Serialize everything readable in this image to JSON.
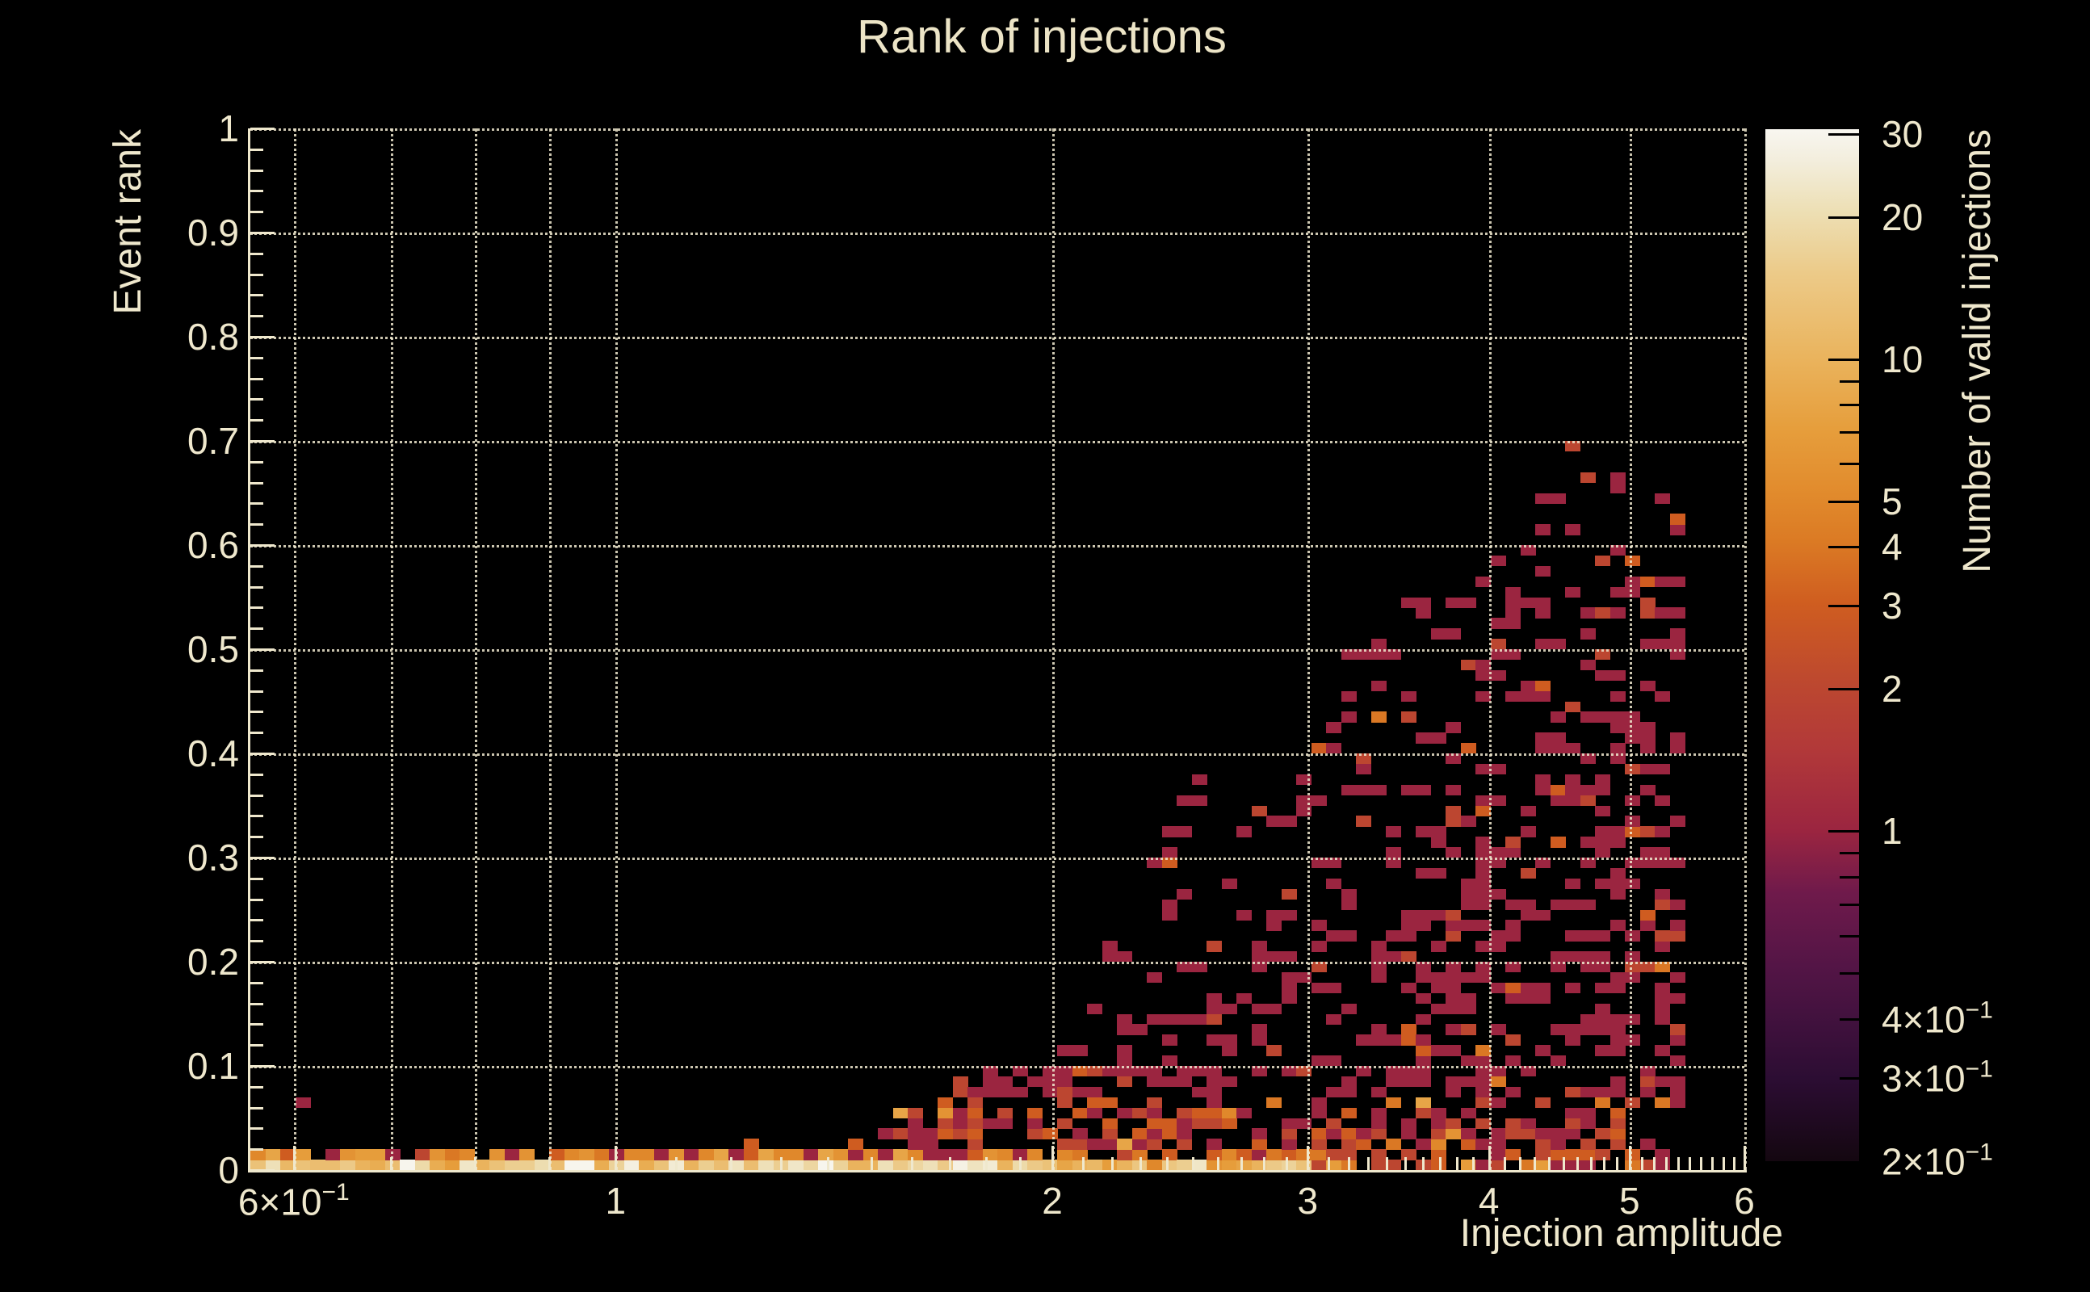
{
  "chart_data": {
    "type": "heatmap",
    "title": "Rank of injections",
    "xlabel": "Injection amplitude",
    "ylabel": "Event rank",
    "zlabel": "Number of valid injections",
    "x_scale": "log",
    "x_range": [
      0.56,
      6.0
    ],
    "y_scale": "linear",
    "y_range": [
      0.0,
      1.0
    ],
    "z_scale": "log",
    "z_range": [
      0.2,
      30.7
    ],
    "nx": 100,
    "ny": 100,
    "grid": true,
    "x_major_ticks": [
      {
        "v": 0.6,
        "m": "6×10",
        "s": "−1"
      },
      {
        "v": 1,
        "m": "1",
        "s": ""
      },
      {
        "v": 2,
        "m": "2",
        "s": ""
      },
      {
        "v": 3,
        "m": "3",
        "s": ""
      },
      {
        "v": 4,
        "m": "4",
        "s": ""
      },
      {
        "v": 5,
        "m": "5",
        "s": ""
      },
      {
        "v": 6,
        "m": "6",
        "s": ""
      }
    ],
    "x_gridlines": [
      0.6,
      0.7,
      0.8,
      0.9,
      1,
      2,
      3,
      4,
      5,
      6
    ],
    "y_major_ticks": [
      {
        "v": 0.0,
        "label": "0"
      },
      {
        "v": 0.1,
        "label": "0.1"
      },
      {
        "v": 0.2,
        "label": "0.2"
      },
      {
        "v": 0.3,
        "label": "0.3"
      },
      {
        "v": 0.4,
        "label": "0.4"
      },
      {
        "v": 0.5,
        "label": "0.5"
      },
      {
        "v": 0.6,
        "label": "0.6"
      },
      {
        "v": 0.7,
        "label": "0.7"
      },
      {
        "v": 0.8,
        "label": "0.8"
      },
      {
        "v": 0.9,
        "label": "0.9"
      },
      {
        "v": 1.0,
        "label": "1"
      }
    ],
    "y_minor_step": 0.02,
    "colorbar": {
      "major_ticks": [
        30,
        20,
        10,
        5,
        4,
        3,
        2,
        1
      ],
      "minor_ticks": [
        9,
        8,
        7,
        6,
        0.9,
        0.8,
        0.7,
        0.6,
        0.5,
        0.4,
        0.3
      ],
      "labels": [
        {
          "v": 30,
          "m": "30",
          "s": ""
        },
        {
          "v": 20,
          "m": "20",
          "s": ""
        },
        {
          "v": 10,
          "m": "10",
          "s": ""
        },
        {
          "v": 5,
          "m": "5",
          "s": ""
        },
        {
          "v": 4,
          "m": "4",
          "s": ""
        },
        {
          "v": 3,
          "m": "3",
          "s": ""
        },
        {
          "v": 2,
          "m": "2",
          "s": ""
        },
        {
          "v": 1,
          "m": "1",
          "s": ""
        },
        {
          "v": 0.4,
          "m": "4×10",
          "s": "−1"
        },
        {
          "v": 0.3,
          "m": "3×10",
          "s": "−1"
        },
        {
          "v": 0.2,
          "m": "2×10",
          "s": "−1"
        }
      ]
    },
    "palette": [
      [
        0.0,
        "#140710"
      ],
      [
        0.08,
        "#2c0d33"
      ],
      [
        0.145,
        "#44123f"
      ],
      [
        0.19,
        "#541546"
      ],
      [
        0.26,
        "#6f1a4b"
      ],
      [
        0.32,
        "#9b2540"
      ],
      [
        0.4,
        "#b23939"
      ],
      [
        0.46,
        "#bc4730"
      ],
      [
        0.54,
        "#cf5d20"
      ],
      [
        0.6,
        "#db7a24"
      ],
      [
        0.645,
        "#e18a2c"
      ],
      [
        0.71,
        "#e69e3c"
      ],
      [
        0.78,
        "#eab45e"
      ],
      [
        0.86,
        "#ecca88"
      ],
      [
        0.92,
        "#eddfb4"
      ],
      [
        0.97,
        "#f3eedd"
      ],
      [
        1.0,
        "#f8f6f0"
      ]
    ],
    "colors": {
      "background": "#000000",
      "text": "#efe8cd",
      "grid": "#efe8cd",
      "axis": "#efe8cd"
    },
    "generation": {
      "seed": 20,
      "band_end_row0": 5.42,
      "band_end_row1": 5.3,
      "x_cutoff": 5.45,
      "envelope": [
        [
          0.56,
          0.035
        ],
        [
          1.5,
          0.05
        ],
        [
          1.7,
          0.09
        ],
        [
          2.0,
          0.17
        ],
        [
          2.3,
          0.27
        ],
        [
          2.5,
          0.39
        ],
        [
          2.75,
          0.34
        ],
        [
          3.0,
          0.41
        ],
        [
          3.3,
          0.54
        ],
        [
          3.6,
          0.55
        ],
        [
          4.0,
          0.57
        ],
        [
          4.3,
          0.66
        ],
        [
          4.6,
          0.7
        ],
        [
          5.0,
          0.7
        ],
        [
          5.3,
          0.73
        ],
        [
          5.45,
          0.6
        ]
      ],
      "cloud_p0": 0.4,
      "cloud_p_slope": 0.28,
      "cloud_p_min": 0.06,
      "low_band_p": 0.55,
      "mid_band_p": 0.38,
      "pair_prob": 0.22
    }
  }
}
